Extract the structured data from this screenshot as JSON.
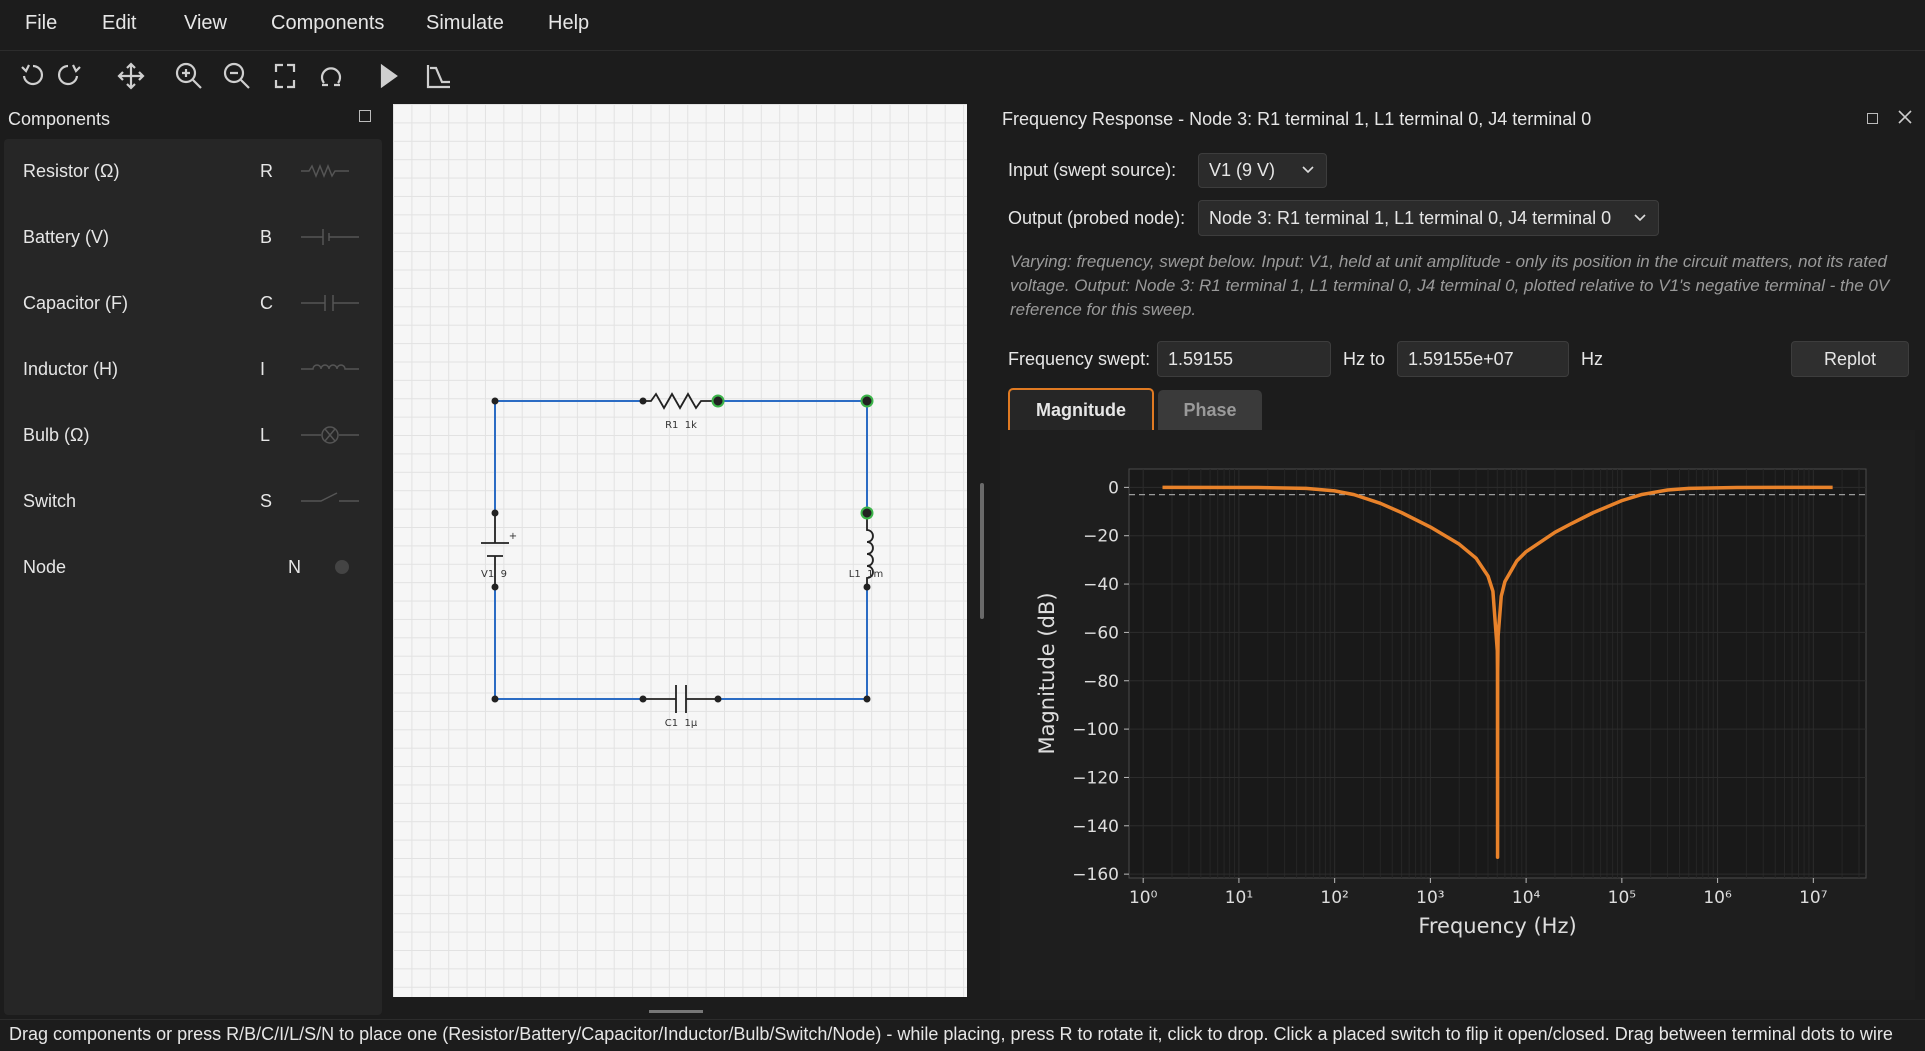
{
  "menu": [
    "File",
    "Edit",
    "View",
    "Components",
    "Simulate",
    "Help"
  ],
  "components_panel": {
    "title": "Components",
    "items": [
      {
        "name": "Resistor (Ω)",
        "key": "R"
      },
      {
        "name": "Battery (V)",
        "key": "B"
      },
      {
        "name": "Capacitor (F)",
        "key": "C"
      },
      {
        "name": "Inductor (H)",
        "key": "I"
      },
      {
        "name": "Bulb (Ω)",
        "key": "L"
      },
      {
        "name": "Switch",
        "key": "S"
      },
      {
        "name": "Node",
        "key": "N"
      }
    ]
  },
  "circuit": {
    "r1": "R1  1k",
    "c1": "C1  1µ",
    "v1": "V1  9",
    "l1": "L1  1m",
    "polarity": "+"
  },
  "frequency_response": {
    "title": "Frequency Response - Node 3: R1 terminal 1, L1 terminal 0, J4 terminal 0",
    "input_label": "Input (swept source):",
    "input_value": "V1 (9 V)",
    "output_label": "Output (probed node):",
    "output_value": "Node 3: R1 terminal 1, L1 terminal 0, J4 terminal 0",
    "description": "Varying: frequency, swept below. Input: V1, held at unit amplitude - only its position in the circuit matters, not its rated voltage. Output: Node 3: R1 terminal 1, L1 terminal 0, J4 terminal 0, plotted relative to V1's negative terminal - the 0V reference for this sweep.",
    "freq_label": "Frequency swept:",
    "freq_from": "1.59155",
    "freq_to_label": "Hz to",
    "freq_to": "1.59155e+07",
    "freq_unit": "Hz",
    "replot": "Replot",
    "tabs": [
      "Magnitude",
      "Phase"
    ]
  },
  "status_bar": "Drag components or press R/B/C/I/L/S/N to place one (Resistor/Battery/Capacitor/Inductor/Bulb/Switch/Node) - while placing, press R to rotate it, click to drop. Click a placed switch to flip it open/closed. Drag between terminal dots to wire",
  "chart_data": {
    "type": "line",
    "x_label": "Frequency (Hz)",
    "y_label": "Magnitude (dB)",
    "xscale": "log",
    "grid": true,
    "color": "#e8822a",
    "x": [
      1.59155,
      15.9155,
      50.33,
      100,
      159.155,
      300,
      503.3,
      1000,
      2000,
      3000,
      4000,
      4500,
      5000,
      5020,
      5033,
      5045,
      5100,
      5500,
      6000,
      8000,
      10000,
      20000,
      30000,
      50000,
      100000,
      159155,
      300000,
      503300,
      1591550,
      15915500
    ],
    "values": [
      0,
      -0.04,
      -0.41,
      -1.45,
      -3.01,
      -6.6,
      -10.5,
      -16.4,
      -23.5,
      -29.3,
      -36.7,
      -43.0,
      -67.6,
      -75.9,
      -153,
      -76.5,
      -61.5,
      -45.0,
      -39.0,
      -30.4,
      -26.6,
      -18.6,
      -14.9,
      -10.5,
      -5.49,
      -3.01,
      -1.08,
      -0.41,
      -0.04,
      0
    ],
    "reference_line": -3.01,
    "reference_color": "#9a9a9a",
    "xlim": [
      0.711,
      35500000
    ],
    "ylim": [
      -161.6,
      7.6
    ],
    "xticks": [
      {
        "value": 1,
        "label": "10⁰"
      },
      {
        "value": 10,
        "label": "10¹"
      },
      {
        "value": 100,
        "label": "10²"
      },
      {
        "value": 1000,
        "label": "10³"
      },
      {
        "value": 10000,
        "label": "10⁴"
      },
      {
        "value": 100000,
        "label": "10⁵"
      },
      {
        "value": 1000000,
        "label": "10⁶"
      },
      {
        "value": 10000000,
        "label": "10⁷"
      }
    ],
    "yticks": [
      0,
      {
        "value": -20,
        "label": "−20"
      },
      {
        "value": -40,
        "label": "−40"
      },
      {
        "value": -60,
        "label": "−60"
      },
      {
        "value": -80,
        "label": "−80"
      },
      {
        "value": -100,
        "label": "−100"
      },
      {
        "value": -120,
        "label": "−120"
      },
      {
        "value": -140,
        "label": "−140"
      },
      {
        "value": -160,
        "label": "−160"
      }
    ]
  }
}
